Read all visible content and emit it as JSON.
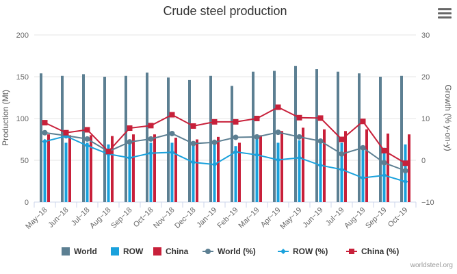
{
  "chart_data": {
    "type": "bar+line",
    "title": "Crude steel production",
    "ylabel_left": "Production (Mt)",
    "ylabel_right": "Growth (% y-on-y)",
    "ylim_left": [
      0,
      200
    ],
    "ylim_right": [
      -10,
      30
    ],
    "yticks_left": [
      "0",
      "50",
      "100",
      "150",
      "200"
    ],
    "yticks_right": [
      "−10",
      "0",
      "10",
      "20",
      "30"
    ],
    "categories": [
      "May−18",
      "Jun−18",
      "Jul−18",
      "Aug−18",
      "Sep−18",
      "Oct−18",
      "Nov−18",
      "Dec−18",
      "Jan−19",
      "Feb−19",
      "Mar−19",
      "Apr−19",
      "May−19",
      "Jun−19",
      "Jul−19",
      "Aug−19",
      "Sep−19",
      "Oct−19"
    ],
    "bar_series": [
      {
        "name": "World",
        "color": "#5c7f92",
        "values": [
          154,
          151,
          153,
          150,
          151,
          155,
          149,
          146,
          151,
          139,
          156,
          157,
          163,
          159,
          156,
          154,
          150,
          151
        ]
      },
      {
        "name": "ROW",
        "color": "#1aa1dc",
        "values": [
          72,
          71,
          71,
          69,
          71,
          71,
          71,
          70,
          71,
          67,
          76,
          71,
          74,
          71,
          71,
          66,
          65,
          69
        ]
      },
      {
        "name": "China",
        "color": "#c8203a",
        "values": [
          81,
          80,
          80,
          79,
          81,
          81,
          77,
          75,
          78,
          71,
          80,
          85,
          89,
          87,
          85,
          87,
          82,
          81
        ]
      }
    ],
    "line_series": [
      {
        "name": "World (%)",
        "color": "#5c7f92",
        "marker": "circle",
        "values": [
          6.6,
          5.9,
          5.1,
          2.1,
          4.4,
          5.1,
          6.4,
          4.0,
          4.3,
          5.5,
          5.6,
          6.7,
          5.6,
          4.6,
          1.5,
          3.0,
          -0.6,
          -2.5
        ]
      },
      {
        "name": "ROW (%)",
        "color": "#1aa1dc",
        "marker": "diamond",
        "values": [
          4.5,
          5.8,
          3.5,
          1.5,
          0.6,
          1.7,
          1.9,
          -0.5,
          -1.0,
          2.0,
          1.3,
          0.1,
          0.6,
          -1.2,
          -2.2,
          -4.2,
          -3.6,
          -5.1
        ]
      },
      {
        "name": "China (%)",
        "color": "#c8203a",
        "marker": "square",
        "values": [
          9.0,
          6.6,
          7.3,
          2.1,
          7.7,
          8.3,
          10.9,
          8.2,
          9.2,
          9.2,
          10.0,
          12.7,
          10.2,
          10.1,
          5.0,
          9.3,
          2.3,
          -0.7
        ]
      }
    ],
    "legend": {
      "position": "bottom",
      "items": [
        "World",
        "ROW",
        "China",
        "World (%)",
        "ROW (%)",
        "China (%)"
      ]
    },
    "credit": "worldsteel.org"
  }
}
